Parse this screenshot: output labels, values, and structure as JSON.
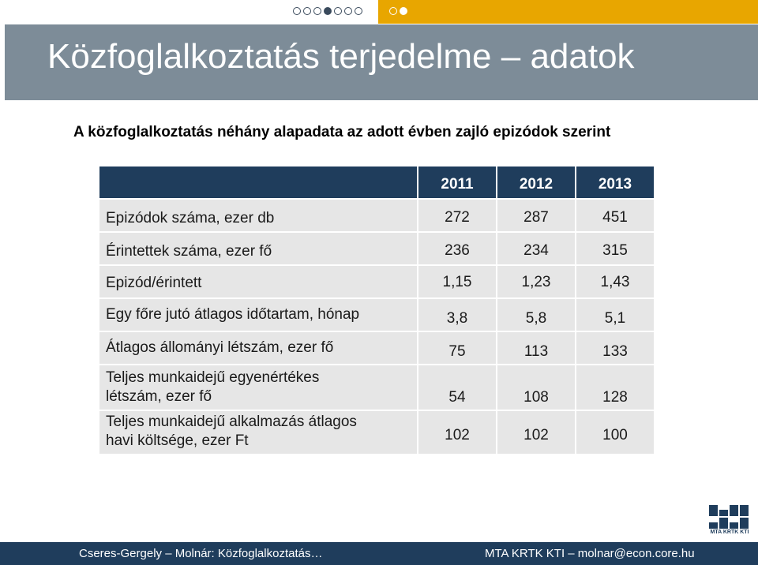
{
  "slide": {
    "title": "Közfoglalkoztatás terjedelme – adatok",
    "subtitle": "A közfoglalkoztatás néhány alapadata az adott évben zajló epizódok szerint"
  },
  "table": {
    "years": [
      "2011",
      "2012",
      "2013"
    ],
    "rows": [
      {
        "label_lines": [
          "Epizódok száma, ezer db"
        ],
        "values": [
          "272",
          "287",
          "451"
        ]
      },
      {
        "label_lines": [
          "Érintettek száma, ezer fő"
        ],
        "values": [
          "236",
          "234",
          "315"
        ]
      },
      {
        "label_lines": [
          "Epizód/érintett"
        ],
        "values": [
          "1,15",
          "1,23",
          "1,43"
        ]
      },
      {
        "label_lines": [
          "Egy főre jutó átlagos időtartam, hónap"
        ],
        "values": [
          "3,8",
          "5,8",
          "5,1"
        ]
      },
      {
        "label_lines": [
          "Átlagos állományi létszám, ezer fő"
        ],
        "values": [
          "75",
          "113",
          "133"
        ]
      },
      {
        "label_lines": [
          "Teljes munkaidejű egyenértékes",
          "létszám, ezer fő"
        ],
        "values": [
          "54",
          "108",
          "128"
        ]
      },
      {
        "label_lines": [
          "Teljes munkaidejű alkalmazás átlagos",
          "havi költsége, ezer Ft"
        ],
        "values": [
          "102",
          "102",
          "100"
        ]
      }
    ]
  },
  "logo": {
    "text": "MTA KRTK KTI",
    "color": "#1f3d5c"
  },
  "footer": {
    "left": "Cseres-Gergely – Molnár: Közfoglalkoztatás…",
    "right": "MTA KRTK KTI – molnar@econ.core.hu"
  },
  "colors": {
    "title_band": "#7d8c98",
    "header": "#1f3d5c",
    "row_bg": "#e6e6e6",
    "gold": "#e8a600"
  }
}
